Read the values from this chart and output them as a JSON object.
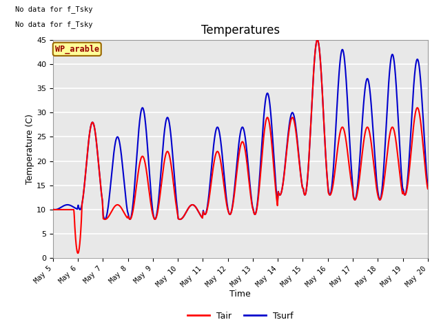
{
  "title": "Temperatures",
  "xlabel": "Time",
  "ylabel": "Temperature (C)",
  "ylim": [
    0,
    45
  ],
  "xlim_days": [
    5,
    20
  ],
  "tair_color": "#ff0000",
  "tsurf_color": "#0000cc",
  "legend_labels": [
    "Tair",
    "Tsurf"
  ],
  "wp_label": "WP_arable",
  "no_data_text1": "No data for f_Tsky",
  "no_data_text2": "No data for f_Tsky",
  "bg_color": "#e8e8e8",
  "title_fontsize": 12,
  "axis_fontsize": 9,
  "tick_labels": [
    "May 5",
    "May 6",
    "May 7",
    "May 8",
    "May 9",
    "May 10",
    "May 11",
    "May 12",
    "May 13",
    "May 14",
    "May 15",
    "May 16",
    "May 17",
    "May 18",
    "May 19",
    "May 20"
  ],
  "tick_positions": [
    5,
    6,
    7,
    8,
    9,
    10,
    11,
    12,
    13,
    14,
    15,
    16,
    17,
    18,
    19,
    20
  ],
  "yticks": [
    0,
    5,
    10,
    15,
    20,
    25,
    30,
    35,
    40,
    45
  ]
}
